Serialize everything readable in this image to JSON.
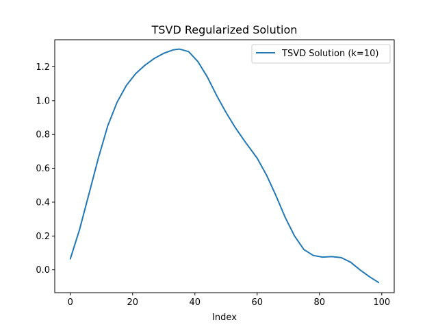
{
  "chart_data": {
    "type": "line",
    "title": "TSVD Regularized Solution",
    "xlabel": "Index",
    "ylabel": "",
    "xlim": [
      -5,
      104
    ],
    "ylim": [
      -0.135,
      1.36
    ],
    "x_ticks": [
      0,
      20,
      40,
      60,
      80,
      100
    ],
    "y_ticks": [
      0.0,
      0.2,
      0.4,
      0.6,
      0.8,
      1.0,
      1.2
    ],
    "x_tick_labels": [
      "0",
      "20",
      "40",
      "60",
      "80",
      "100"
    ],
    "y_tick_labels": [
      "0.0",
      "0.2",
      "0.4",
      "0.6",
      "0.8",
      "1.0",
      "1.2"
    ],
    "grid": false,
    "legend_position": "top-right",
    "series": [
      {
        "name": "TSVD Solution (k=10)",
        "color": "#1f77b4",
        "x": [
          0,
          3,
          6,
          9,
          12,
          15,
          18,
          21,
          24,
          27,
          30,
          33,
          35,
          38,
          41,
          44,
          47,
          50,
          53,
          56,
          60,
          63,
          66,
          69,
          72,
          75,
          78,
          81,
          84,
          87,
          90,
          93,
          96,
          99
        ],
        "y": [
          0.065,
          0.24,
          0.45,
          0.66,
          0.85,
          0.99,
          1.09,
          1.16,
          1.21,
          1.25,
          1.28,
          1.3,
          1.305,
          1.29,
          1.23,
          1.14,
          1.03,
          0.93,
          0.84,
          0.76,
          0.66,
          0.56,
          0.44,
          0.31,
          0.2,
          0.12,
          0.085,
          0.075,
          0.078,
          0.072,
          0.045,
          0.0,
          -0.04,
          -0.075
        ]
      }
    ]
  }
}
